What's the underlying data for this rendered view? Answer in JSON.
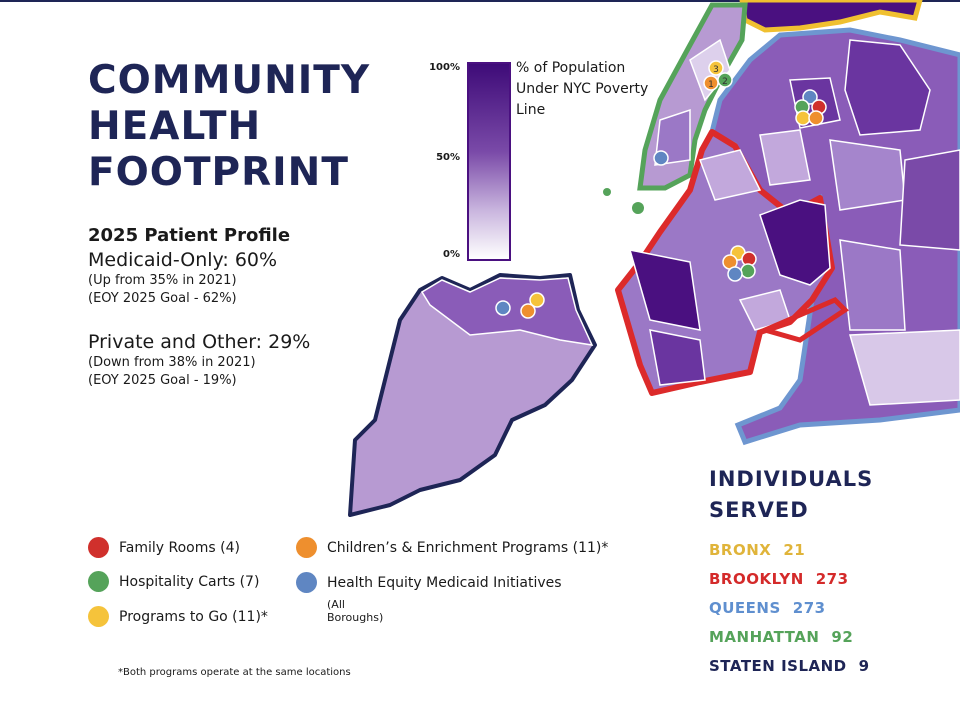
{
  "title_lines": [
    "COMMUNITY",
    "HEALTH",
    "FOOTPRINT"
  ],
  "profile": {
    "heading": "2025 Patient Profile",
    "medicaid": {
      "label": "Medicaid-Only: 60%",
      "change": "(Up from 35% in 2021)",
      "goal": "(EOY 2025 Goal - 62%)"
    },
    "private": {
      "label": "Private and Other: 29%",
      "change": "(Down from 38% in 2021)",
      "goal": "(EOY 2025 Goal - 19%)"
    }
  },
  "colorbar": {
    "title": "% of Population Under NYC Poverty Line",
    "ticks": [
      "100%",
      "50%",
      "0%"
    ],
    "color_high": "#3e0b78",
    "color_low": "#ffffff"
  },
  "map_markers": {
    "manhattan_numbers": [
      "1",
      "2",
      "3"
    ]
  },
  "legend": {
    "items": [
      {
        "label": "Family Rooms (4)",
        "color": "#d0302c"
      },
      {
        "label": "Hospitality Carts (7)",
        "color": "#55a35a"
      },
      {
        "label": "Programs to Go (11)*",
        "color": "#f5c33b"
      },
      {
        "label": "Children’s & Enrichment Programs (11)*",
        "color": "#ee8f2e"
      },
      {
        "label": "Health Equity Medicaid Initiatives",
        "color": "#5f86c2"
      }
    ],
    "sub_note": "(All Boroughs)",
    "footnote": "*Both programs operate at the same locations"
  },
  "served": {
    "heading_lines": [
      "INDIVIDUALS",
      "SERVED"
    ],
    "rows": [
      {
        "borough": "BRONX",
        "value": "21",
        "color": "#e0b43a"
      },
      {
        "borough": "BROOKLYN",
        "value": "273",
        "color": "#d42a2a"
      },
      {
        "borough": "QUEENS",
        "value": "273",
        "color": "#5f8fcf"
      },
      {
        "borough": "MANHATTAN",
        "value": "92",
        "color": "#55a35a"
      },
      {
        "borough": "STATEN ISLAND",
        "value": "9",
        "color": "#1e2556"
      }
    ]
  }
}
